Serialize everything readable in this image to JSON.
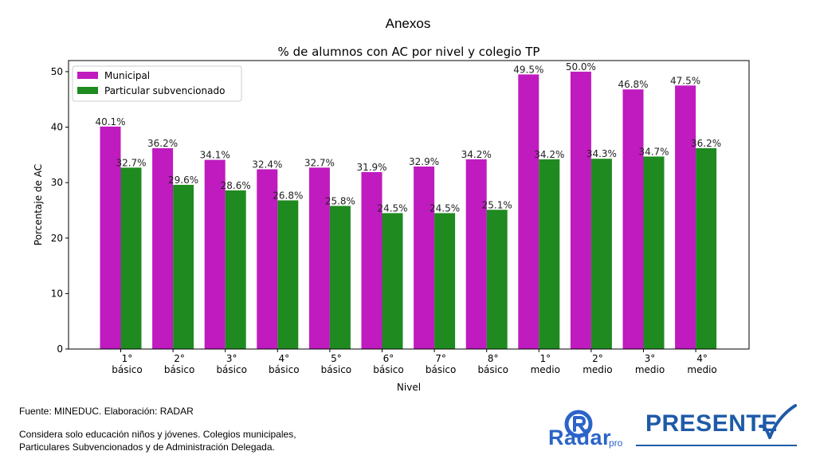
{
  "slide": {
    "title": "Anexos",
    "source": "Fuente: MINEDUC. Elaboración: RADAR",
    "note_line1": "Considera solo educación niños y jóvenes. Colegios municipales,",
    "note_line2": "Particulares Subvencionados y de Administración Delegada."
  },
  "logos": {
    "radar_word": "Radar",
    "radar_suffix": "pro",
    "presente_word": "PRESENTE",
    "radar_icon": "radar-r-icon",
    "check_icon": "check-icon",
    "radar_color": "#2b64c9",
    "presente_color": "#1e5aa8"
  },
  "chart_data": {
    "type": "bar",
    "title": "% de alumnos con AC por nivel y colegio TP",
    "xlabel": "Nivel",
    "ylabel": "Porcentaje de AC",
    "ylim": [
      0,
      52
    ],
    "yticks": [
      0,
      10,
      20,
      30,
      40,
      50
    ],
    "legend_position": "top-left",
    "categories": [
      [
        "1°",
        "básico"
      ],
      [
        "2°",
        "básico"
      ],
      [
        "3°",
        "básico"
      ],
      [
        "4°",
        "básico"
      ],
      [
        "5°",
        "básico"
      ],
      [
        "6°",
        "básico"
      ],
      [
        "7°",
        "básico"
      ],
      [
        "8°",
        "básico"
      ],
      [
        "1°",
        "medio"
      ],
      [
        "2°",
        "medio"
      ],
      [
        "3°",
        "medio"
      ],
      [
        "4°",
        "medio"
      ]
    ],
    "series": [
      {
        "name": "Municipal",
        "color": "#bf1bbf",
        "values": [
          40.1,
          36.2,
          34.1,
          32.4,
          32.7,
          31.9,
          32.9,
          34.2,
          49.5,
          50.0,
          46.8,
          47.5
        ],
        "labels": [
          "40.1%",
          "36.2%",
          "34.1%",
          "32.4%",
          "32.7%",
          "31.9%",
          "32.9%",
          "34.2%",
          "49.5%",
          "50.0%",
          "46.8%",
          "47.5%"
        ]
      },
      {
        "name": "Particular subvencionado",
        "color": "#1f8a1f",
        "values": [
          32.7,
          29.6,
          28.6,
          26.8,
          25.8,
          24.5,
          24.5,
          25.1,
          34.2,
          34.3,
          34.7,
          36.2
        ],
        "labels": [
          "32.7%",
          "29.6%",
          "28.6%",
          "26.8%",
          "25.8%",
          "24.5%",
          "24.5%",
          "25.1%",
          "34.2%",
          "34.3%",
          "34.7%",
          "36.2%"
        ]
      }
    ]
  }
}
